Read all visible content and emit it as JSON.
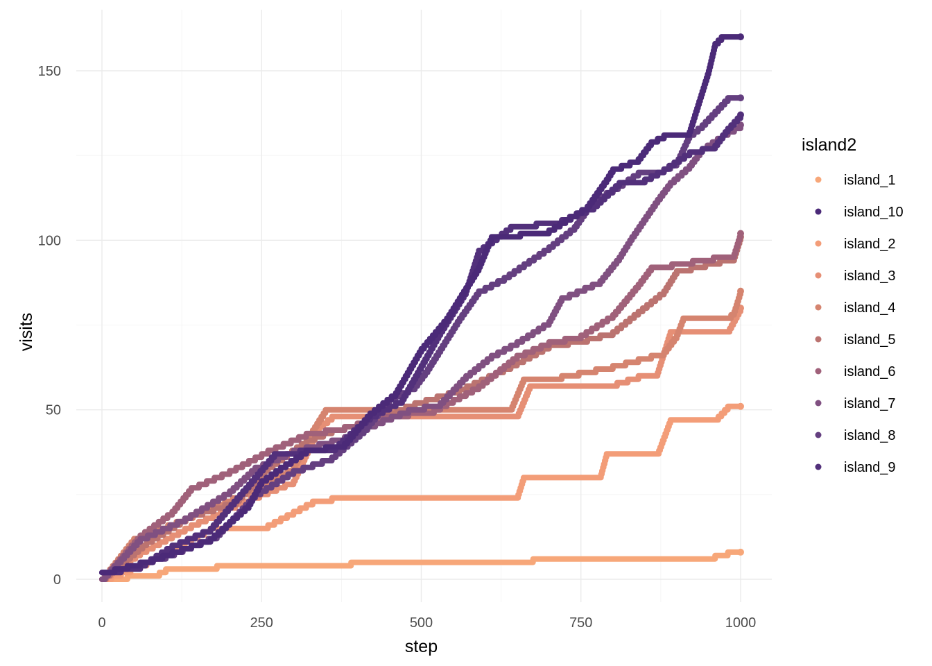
{
  "chart_data": {
    "type": "line",
    "xlabel": "step",
    "ylabel": "visits",
    "xlim": [
      0,
      1000
    ],
    "ylim": [
      0,
      160
    ],
    "x_ticks": [
      0,
      250,
      500,
      750,
      1000
    ],
    "y_ticks": [
      0,
      50,
      100,
      150
    ],
    "grid": true,
    "legend": {
      "title": "island2",
      "placement": "right"
    },
    "series": [
      {
        "name": "island_1",
        "color": "#f7a779",
        "points": [
          [
            0,
            0
          ],
          [
            40,
            1
          ],
          [
            90,
            2
          ],
          [
            100,
            3
          ],
          [
            180,
            4
          ],
          [
            390,
            5
          ],
          [
            960,
            7
          ],
          [
            980,
            8
          ],
          [
            1000,
            8
          ]
        ]
      },
      {
        "name": "island_10",
        "color": "#4b2a78",
        "points": [
          [
            0,
            2
          ],
          [
            80,
            6
          ],
          [
            170,
            12
          ],
          [
            230,
            22
          ],
          [
            250,
            29
          ],
          [
            280,
            33
          ],
          [
            320,
            38
          ],
          [
            380,
            40
          ],
          [
            420,
            49
          ],
          [
            460,
            55
          ],
          [
            500,
            68
          ],
          [
            540,
            77
          ],
          [
            590,
            92
          ],
          [
            610,
            101
          ],
          [
            700,
            103
          ],
          [
            760,
            110
          ],
          [
            790,
            118
          ],
          [
            800,
            121
          ],
          [
            840,
            124
          ],
          [
            860,
            129
          ],
          [
            880,
            131
          ],
          [
            920,
            132
          ],
          [
            950,
            150
          ],
          [
            960,
            158
          ],
          [
            970,
            160
          ],
          [
            1000,
            160
          ]
        ]
      },
      {
        "name": "island_2",
        "color": "#f39d78",
        "points": [
          [
            0,
            0
          ],
          [
            60,
            4
          ],
          [
            120,
            10
          ],
          [
            170,
            15
          ],
          [
            250,
            15
          ],
          [
            300,
            20
          ],
          [
            330,
            23
          ],
          [
            360,
            24
          ],
          [
            650,
            24
          ],
          [
            660,
            30
          ],
          [
            780,
            30
          ],
          [
            790,
            37
          ],
          [
            870,
            37
          ],
          [
            880,
            42
          ],
          [
            890,
            47
          ],
          [
            960,
            47
          ],
          [
            980,
            51
          ],
          [
            1000,
            51
          ]
        ]
      },
      {
        "name": "island_3",
        "color": "#e68f75",
        "points": [
          [
            0,
            0
          ],
          [
            60,
            8
          ],
          [
            140,
            16
          ],
          [
            220,
            23
          ],
          [
            300,
            29
          ],
          [
            340,
            45
          ],
          [
            360,
            48
          ],
          [
            650,
            48
          ],
          [
            670,
            57
          ],
          [
            790,
            57
          ],
          [
            840,
            60
          ],
          [
            870,
            61
          ],
          [
            890,
            73
          ],
          [
            980,
            73
          ],
          [
            1000,
            80
          ]
        ]
      },
      {
        "name": "island_4",
        "color": "#d5846f",
        "points": [
          [
            0,
            0
          ],
          [
            50,
            12
          ],
          [
            130,
            18
          ],
          [
            230,
            26
          ],
          [
            300,
            33
          ],
          [
            330,
            44
          ],
          [
            350,
            50
          ],
          [
            640,
            50
          ],
          [
            660,
            59
          ],
          [
            720,
            60
          ],
          [
            800,
            63
          ],
          [
            880,
            67
          ],
          [
            900,
            72
          ],
          [
            910,
            77
          ],
          [
            980,
            77
          ],
          [
            990,
            79
          ],
          [
            1000,
            85
          ]
        ]
      },
      {
        "name": "island_5",
        "color": "#bb7370",
        "points": [
          [
            0,
            0
          ],
          [
            70,
            11
          ],
          [
            140,
            19
          ],
          [
            210,
            23
          ],
          [
            260,
            33
          ],
          [
            320,
            41
          ],
          [
            360,
            44
          ],
          [
            420,
            47
          ],
          [
            490,
            52
          ],
          [
            560,
            56
          ],
          [
            640,
            63
          ],
          [
            700,
            69
          ],
          [
            760,
            71
          ],
          [
            800,
            73
          ],
          [
            840,
            79
          ],
          [
            880,
            85
          ],
          [
            900,
            91
          ],
          [
            990,
            95
          ],
          [
            1000,
            101
          ]
        ]
      },
      {
        "name": "island_6",
        "color": "#a0617a",
        "points": [
          [
            0,
            0
          ],
          [
            60,
            13
          ],
          [
            110,
            20
          ],
          [
            140,
            27
          ],
          [
            200,
            32
          ],
          [
            260,
            38
          ],
          [
            320,
            43
          ],
          [
            380,
            45
          ],
          [
            440,
            48
          ],
          [
            520,
            50
          ],
          [
            590,
            57
          ],
          [
            650,
            66
          ],
          [
            700,
            70
          ],
          [
            750,
            72
          ],
          [
            800,
            78
          ],
          [
            840,
            87
          ],
          [
            860,
            92
          ],
          [
            990,
            96
          ],
          [
            1000,
            102
          ]
        ]
      },
      {
        "name": "island_7",
        "color": "#805081",
        "points": [
          [
            0,
            0
          ],
          [
            60,
            12
          ],
          [
            130,
            18
          ],
          [
            200,
            26
          ],
          [
            240,
            33
          ],
          [
            300,
            38
          ],
          [
            380,
            42
          ],
          [
            440,
            47
          ],
          [
            480,
            50
          ],
          [
            530,
            52
          ],
          [
            570,
            60
          ],
          [
            610,
            66
          ],
          [
            650,
            70
          ],
          [
            700,
            76
          ],
          [
            720,
            83
          ],
          [
            780,
            88
          ],
          [
            810,
            95
          ],
          [
            830,
            101
          ],
          [
            870,
            112
          ],
          [
            890,
            117
          ],
          [
            920,
            122
          ],
          [
            940,
            127
          ],
          [
            980,
            132
          ],
          [
            1000,
            134
          ]
        ]
      },
      {
        "name": "island_8",
        "color": "#643f80",
        "points": [
          [
            0,
            2
          ],
          [
            100,
            7
          ],
          [
            180,
            13
          ],
          [
            240,
            25
          ],
          [
            300,
            32
          ],
          [
            360,
            36
          ],
          [
            410,
            44
          ],
          [
            450,
            53
          ],
          [
            490,
            57
          ],
          [
            510,
            62
          ],
          [
            560,
            77
          ],
          [
            590,
            85
          ],
          [
            630,
            89
          ],
          [
            700,
            98
          ],
          [
            740,
            104
          ],
          [
            770,
            112
          ],
          [
            800,
            115
          ],
          [
            840,
            120
          ],
          [
            880,
            121
          ],
          [
            900,
            123
          ],
          [
            920,
            131
          ],
          [
            940,
            134
          ],
          [
            960,
            138
          ],
          [
            980,
            142
          ],
          [
            1000,
            142
          ]
        ]
      },
      {
        "name": "island_9",
        "color": "#52307b",
        "points": [
          [
            0,
            2
          ],
          [
            60,
            4
          ],
          [
            110,
            10
          ],
          [
            170,
            15
          ],
          [
            230,
            28
          ],
          [
            270,
            37
          ],
          [
            310,
            38
          ],
          [
            360,
            38
          ],
          [
            400,
            45
          ],
          [
            420,
            48
          ],
          [
            470,
            53
          ],
          [
            500,
            63
          ],
          [
            530,
            73
          ],
          [
            570,
            85
          ],
          [
            590,
            97
          ],
          [
            640,
            104
          ],
          [
            720,
            106
          ],
          [
            770,
            110
          ],
          [
            810,
            117
          ],
          [
            850,
            118
          ],
          [
            880,
            121
          ],
          [
            920,
            126
          ],
          [
            960,
            128
          ],
          [
            980,
            133
          ],
          [
            1000,
            137
          ]
        ]
      }
    ]
  }
}
